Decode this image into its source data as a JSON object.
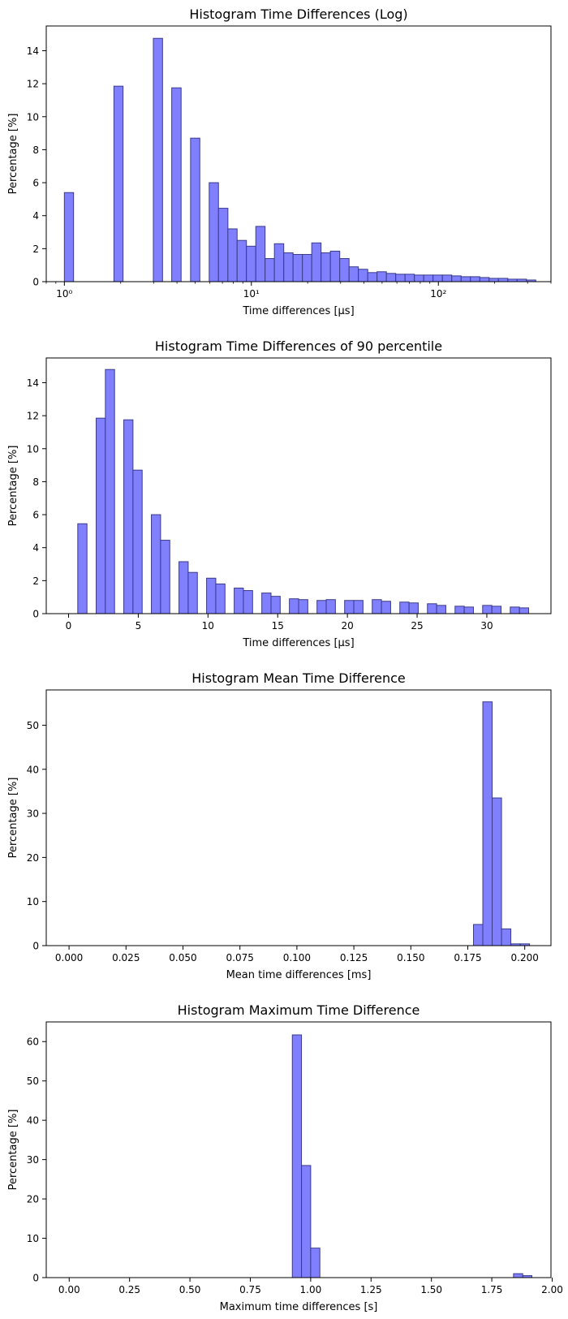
{
  "colors": {
    "bar_fill": "#8080ff",
    "bar_edge": "#3a3a8a",
    "axis": "#000000",
    "background": "#ffffff"
  },
  "chart_data": [
    {
      "type": "bar",
      "title": "Histogram Time Differences (Log)",
      "xlabel": "Time differences [μs]",
      "ylabel": "Percentage [%]",
      "xscale": "log",
      "xlim": [
        0.8,
        400
      ],
      "ylim": [
        0,
        15.5
      ],
      "grid": false,
      "x_ticks": [
        1,
        10,
        100
      ],
      "x_tick_labels": [
        "10⁰",
        "10¹",
        "10²"
      ],
      "y_ticks": [
        0,
        2,
        4,
        6,
        8,
        10,
        12,
        14
      ],
      "bins": [
        {
          "x0": 1.0,
          "x1": 1.12,
          "value": 5.4
        },
        {
          "x0": 1.84,
          "x1": 2.06,
          "value": 11.85
        },
        {
          "x0": 2.99,
          "x1": 3.35,
          "value": 14.75
        },
        {
          "x0": 3.75,
          "x1": 4.21,
          "value": 11.75
        },
        {
          "x0": 4.73,
          "x1": 5.3,
          "value": 8.7
        },
        {
          "x0": 5.95,
          "x1": 6.67,
          "value": 6.0
        },
        {
          "x0": 6.67,
          "x1": 7.49,
          "value": 4.45
        },
        {
          "x0": 7.49,
          "x1": 8.39,
          "value": 3.2
        },
        {
          "x0": 8.39,
          "x1": 9.41,
          "value": 2.5
        },
        {
          "x0": 9.41,
          "x1": 10.56,
          "value": 2.15
        },
        {
          "x0": 10.56,
          "x1": 11.84,
          "value": 3.35
        },
        {
          "x0": 11.84,
          "x1": 13.28,
          "value": 1.4
        },
        {
          "x0": 13.28,
          "x1": 14.9,
          "value": 2.3
        },
        {
          "x0": 14.9,
          "x1": 16.71,
          "value": 1.75
        },
        {
          "x0": 16.71,
          "x1": 18.75,
          "value": 1.65
        },
        {
          "x0": 18.75,
          "x1": 21.03,
          "value": 1.65
        },
        {
          "x0": 21.03,
          "x1": 23.59,
          "value": 2.35
        },
        {
          "x0": 23.59,
          "x1": 26.46,
          "value": 1.75
        },
        {
          "x0": 26.46,
          "x1": 29.69,
          "value": 1.85
        },
        {
          "x0": 29.69,
          "x1": 33.3,
          "value": 1.4
        },
        {
          "x0": 33.3,
          "x1": 37.35,
          "value": 0.9
        },
        {
          "x0": 37.35,
          "x1": 41.9,
          "value": 0.75
        },
        {
          "x0": 41.9,
          "x1": 47.0,
          "value": 0.55
        },
        {
          "x0": 47.0,
          "x1": 52.73,
          "value": 0.6
        },
        {
          "x0": 52.73,
          "x1": 59.15,
          "value": 0.5
        },
        {
          "x0": 59.15,
          "x1": 66.36,
          "value": 0.45
        },
        {
          "x0": 66.36,
          "x1": 74.44,
          "value": 0.45
        },
        {
          "x0": 74.44,
          "x1": 83.51,
          "value": 0.4
        },
        {
          "x0": 83.51,
          "x1": 93.68,
          "value": 0.4
        },
        {
          "x0": 93.68,
          "x1": 105.1,
          "value": 0.4
        },
        {
          "x0": 105.1,
          "x1": 117.9,
          "value": 0.4
        },
        {
          "x0": 117.9,
          "x1": 132.3,
          "value": 0.35
        },
        {
          "x0": 132.3,
          "x1": 148.4,
          "value": 0.3
        },
        {
          "x0": 148.4,
          "x1": 166.5,
          "value": 0.3
        },
        {
          "x0": 166.5,
          "x1": 186.8,
          "value": 0.25
        },
        {
          "x0": 186.8,
          "x1": 209.5,
          "value": 0.2
        },
        {
          "x0": 209.5,
          "x1": 235.1,
          "value": 0.2
        },
        {
          "x0": 235.1,
          "x1": 263.7,
          "value": 0.15
        },
        {
          "x0": 263.7,
          "x1": 295.9,
          "value": 0.15
        },
        {
          "x0": 295.9,
          "x1": 331.9,
          "value": 0.1
        }
      ]
    },
    {
      "type": "bar",
      "title": "Histogram Time Differences of 90 percentile",
      "xlabel": "Time differences [μs]",
      "ylabel": "Percentage [%]",
      "xlim": [
        -1.6,
        34.6
      ],
      "ylim": [
        0,
        15.5
      ],
      "grid": false,
      "x_ticks": [
        0,
        5,
        10,
        15,
        20,
        25,
        30
      ],
      "x_tick_labels": [
        "0",
        "5",
        "10",
        "15",
        "20",
        "25",
        "30"
      ],
      "y_ticks": [
        0,
        2,
        4,
        6,
        8,
        10,
        12,
        14
      ],
      "bins": [
        {
          "x0": 0.66,
          "x1": 1.32,
          "value": 5.45
        },
        {
          "x0": 1.98,
          "x1": 2.64,
          "value": 11.85
        },
        {
          "x0": 2.64,
          "x1": 3.3,
          "value": 14.8
        },
        {
          "x0": 3.96,
          "x1": 4.62,
          "value": 11.75
        },
        {
          "x0": 4.62,
          "x1": 5.28,
          "value": 8.7
        },
        {
          "x0": 5.94,
          "x1": 6.6,
          "value": 6.0
        },
        {
          "x0": 6.6,
          "x1": 7.26,
          "value": 4.45
        },
        {
          "x0": 7.92,
          "x1": 8.58,
          "value": 3.15
        },
        {
          "x0": 8.58,
          "x1": 9.24,
          "value": 2.5
        },
        {
          "x0": 9.9,
          "x1": 10.56,
          "value": 2.15
        },
        {
          "x0": 10.56,
          "x1": 11.22,
          "value": 1.8
        },
        {
          "x0": 11.88,
          "x1": 12.54,
          "value": 1.55
        },
        {
          "x0": 12.54,
          "x1": 13.2,
          "value": 1.4
        },
        {
          "x0": 13.86,
          "x1": 14.52,
          "value": 1.25
        },
        {
          "x0": 14.52,
          "x1": 15.18,
          "value": 1.05
        },
        {
          "x0": 15.84,
          "x1": 16.5,
          "value": 0.9
        },
        {
          "x0": 16.5,
          "x1": 17.16,
          "value": 0.85
        },
        {
          "x0": 17.82,
          "x1": 18.48,
          "value": 0.8
        },
        {
          "x0": 18.48,
          "x1": 19.14,
          "value": 0.85
        },
        {
          "x0": 19.8,
          "x1": 20.46,
          "value": 0.8
        },
        {
          "x0": 20.46,
          "x1": 21.12,
          "value": 0.8
        },
        {
          "x0": 21.78,
          "x1": 22.44,
          "value": 0.85
        },
        {
          "x0": 22.44,
          "x1": 23.1,
          "value": 0.75
        },
        {
          "x0": 23.76,
          "x1": 24.42,
          "value": 0.7
        },
        {
          "x0": 24.42,
          "x1": 25.08,
          "value": 0.65
        },
        {
          "x0": 25.74,
          "x1": 26.4,
          "value": 0.6
        },
        {
          "x0": 26.4,
          "x1": 27.06,
          "value": 0.5
        },
        {
          "x0": 27.72,
          "x1": 28.38,
          "value": 0.45
        },
        {
          "x0": 28.38,
          "x1": 29.04,
          "value": 0.4
        },
        {
          "x0": 29.7,
          "x1": 30.36,
          "value": 0.5
        },
        {
          "x0": 30.36,
          "x1": 31.02,
          "value": 0.45
        },
        {
          "x0": 31.68,
          "x1": 32.34,
          "value": 0.4
        },
        {
          "x0": 32.34,
          "x1": 33.0,
          "value": 0.35
        }
      ]
    },
    {
      "type": "bar",
      "title": "Histogram Mean Time Difference",
      "xlabel": "Mean time differences [ms]",
      "ylabel": "Percentage [%]",
      "xlim": [
        -0.01,
        0.2115
      ],
      "ylim": [
        0,
        58
      ],
      "grid": false,
      "x_ticks": [
        0.0,
        0.025,
        0.05,
        0.075,
        0.1,
        0.125,
        0.15,
        0.175,
        0.2
      ],
      "x_tick_labels": [
        "0.000",
        "0.025",
        "0.050",
        "0.075",
        "0.100",
        "0.125",
        "0.150",
        "0.175",
        "0.200"
      ],
      "y_ticks": [
        0,
        10,
        20,
        30,
        40,
        50
      ],
      "bins": [
        {
          "x0": 0.1775,
          "x1": 0.1816,
          "value": 4.8
        },
        {
          "x0": 0.1816,
          "x1": 0.1857,
          "value": 55.3
        },
        {
          "x0": 0.1857,
          "x1": 0.1898,
          "value": 33.5
        },
        {
          "x0": 0.1898,
          "x1": 0.1939,
          "value": 3.8
        },
        {
          "x0": 0.1939,
          "x1": 0.198,
          "value": 0.4
        },
        {
          "x0": 0.198,
          "x1": 0.2021,
          "value": 0.4
        }
      ]
    },
    {
      "type": "bar",
      "title": "Histogram Maximum Time Difference",
      "xlabel": "Maximum time differences [s]",
      "ylabel": "Percentage [%]",
      "xlim": [
        -0.095,
        1.995
      ],
      "ylim": [
        0,
        65
      ],
      "grid": false,
      "x_ticks": [
        0.0,
        0.25,
        0.5,
        0.75,
        1.0,
        1.25,
        1.5,
        1.75,
        2.0
      ],
      "x_tick_labels": [
        "0.00",
        "0.25",
        "0.50",
        "0.75",
        "1.00",
        "1.25",
        "1.50",
        "1.75",
        "2.00"
      ],
      "y_ticks": [
        0,
        10,
        20,
        30,
        40,
        50,
        60
      ],
      "bins": [
        {
          "x0": 0.924,
          "x1": 0.962,
          "value": 61.7
        },
        {
          "x0": 0.962,
          "x1": 1.0,
          "value": 28.5
        },
        {
          "x0": 1.0,
          "x1": 1.038,
          "value": 7.5
        },
        {
          "x0": 1.84,
          "x1": 1.878,
          "value": 1.0
        },
        {
          "x0": 1.878,
          "x1": 1.916,
          "value": 0.5
        }
      ]
    }
  ]
}
